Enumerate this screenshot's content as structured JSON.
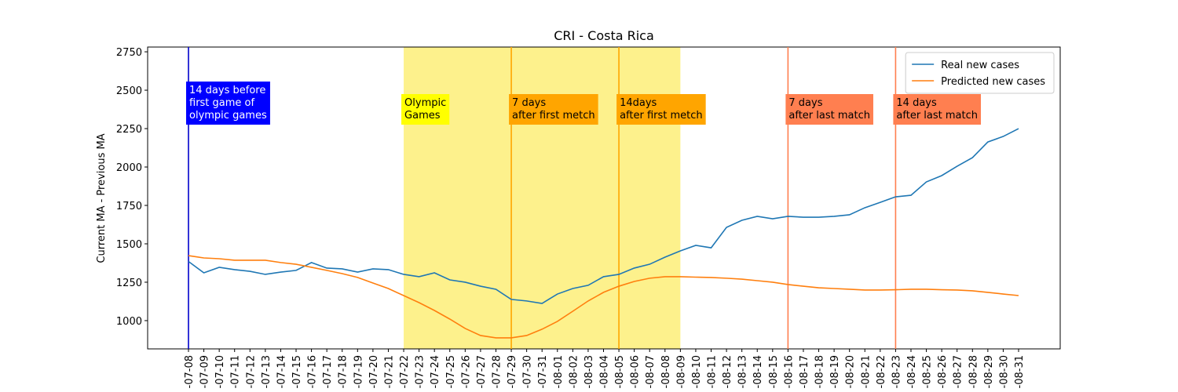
{
  "chart_data": {
    "type": "line",
    "title": "CRI - Costa Rica",
    "y_label": "Current MA - Previous MA",
    "categories": [
      "-07-08",
      "-07-09",
      "-07-10",
      "-07-11",
      "-07-12",
      "-07-13",
      "-07-14",
      "-07-15",
      "-07-16",
      "-07-17",
      "-07-18",
      "-07-19",
      "-07-20",
      "-07-21",
      "-07-22",
      "-07-23",
      "-07-24",
      "-07-25",
      "-07-26",
      "-07-27",
      "-07-28",
      "-07-29",
      "-07-30",
      "-07-31",
      "-08-01",
      "-08-02",
      "-08-03",
      "-08-04",
      "-08-05",
      "-08-06",
      "-08-07",
      "-08-08",
      "-08-09",
      "-08-10",
      "-08-11",
      "-08-12",
      "-08-13",
      "-08-14",
      "-08-15",
      "-08-16",
      "-08-17",
      "-08-18",
      "-08-19",
      "-08-20",
      "-08-21",
      "-08-22",
      "-08-23",
      "-08-24",
      "-08-25",
      "-08-26",
      "-08-27",
      "-08-28",
      "-08-29",
      "-08-30",
      "-08-31"
    ],
    "series": [
      {
        "name": "Real new cases",
        "color": "#1f77b4",
        "values": [
          1385,
          1311,
          1347,
          1332,
          1321,
          1301,
          1316,
          1327,
          1378,
          1342,
          1337,
          1316,
          1337,
          1332,
          1301,
          1286,
          1311,
          1265,
          1250,
          1224,
          1204,
          1138,
          1128,
          1112,
          1173,
          1209,
          1230,
          1286,
          1301,
          1342,
          1367,
          1413,
          1454,
          1490,
          1474,
          1607,
          1653,
          1679,
          1663,
          1679,
          1673,
          1673,
          1679,
          1689,
          1735,
          1770,
          1806,
          1816,
          1903,
          1944,
          2005,
          2061,
          2163,
          2199,
          2250
        ]
      },
      {
        "name": "Predicted new cases",
        "color": "#ff7f0e",
        "values": [
          1423,
          1408,
          1403,
          1393,
          1393,
          1393,
          1378,
          1367,
          1347,
          1327,
          1306,
          1281,
          1245,
          1209,
          1163,
          1117,
          1066,
          1010,
          949,
          903,
          888,
          888,
          903,
          944,
          995,
          1061,
          1128,
          1184,
          1224,
          1255,
          1276,
          1286,
          1286,
          1283,
          1281,
          1276,
          1270,
          1260,
          1250,
          1235,
          1224,
          1214,
          1209,
          1204,
          1199,
          1199,
          1201,
          1204,
          1204,
          1201,
          1199,
          1194,
          1184,
          1173,
          1163
        ]
      }
    ],
    "ylim": [
      816,
      2781
    ],
    "yticks": [
      1000,
      1250,
      1500,
      1750,
      2000,
      2250,
      2500,
      2750
    ],
    "legend": "upper right",
    "span": {
      "start": "-07-22",
      "end": "-08-09",
      "color": "#fdef80"
    },
    "vlines": [
      {
        "x": "-07-08",
        "color": "#0000cc"
      },
      {
        "x": "-07-29",
        "color": "#ffa500"
      },
      {
        "x": "-08-05",
        "color": "#ffa500"
      },
      {
        "x": "-08-16",
        "color": "#ff7f50"
      },
      {
        "x": "-08-23",
        "color": "#ff7f50"
      }
    ],
    "annotations": [
      {
        "x": "-07-08",
        "text": [
          "14 days before",
          "first game of",
          "olympic games"
        ],
        "background": "#0000ff",
        "color": "#ffffff"
      },
      {
        "x": "-07-22",
        "text": [
          "Olympic",
          "Games"
        ],
        "background": "#ffff00",
        "color": "#000000"
      },
      {
        "x": "-07-29",
        "text": [
          "7 days",
          "after first metch"
        ],
        "background": "#ffa500",
        "color": "#000000"
      },
      {
        "x": "-08-05",
        "text": [
          "14days",
          "after first metch"
        ],
        "background": "#ffa500",
        "color": "#000000"
      },
      {
        "x": "-08-16",
        "text": [
          "7 days",
          "after last match"
        ],
        "background": "#ff7f50",
        "color": "#000000"
      },
      {
        "x": "-08-23",
        "text": [
          "14 days",
          "after last match"
        ],
        "background": "#ff7f50",
        "color": "#000000"
      }
    ]
  }
}
